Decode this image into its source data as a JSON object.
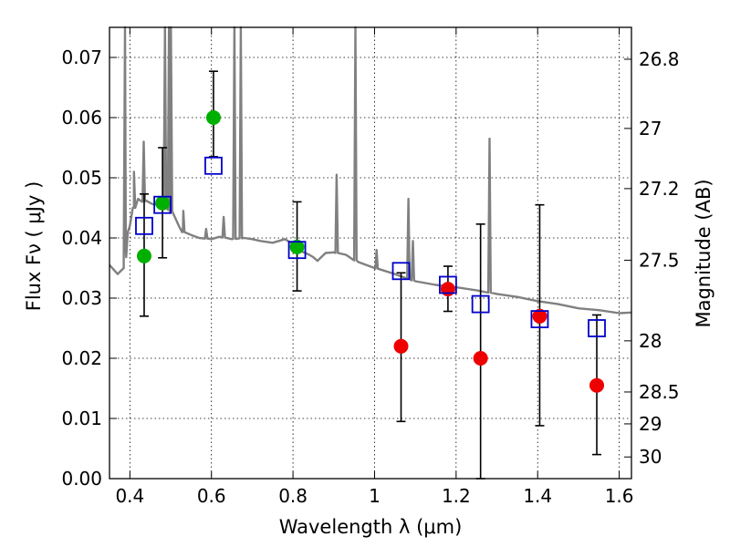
{
  "chart_data": {
    "type": "scatter",
    "title": "",
    "xlabel": "Wavelength  λ (μm)",
    "ylabel": "Flux  Fν  ( μJy )",
    "y2label": "Magnitude (AB)",
    "xlim": [
      0.35,
      1.63
    ],
    "ylim": [
      0.0,
      0.075
    ],
    "grid": true,
    "x_ticks": [
      0.4,
      0.6,
      0.8,
      1.0,
      1.2,
      1.4,
      1.6
    ],
    "x_tick_labels": [
      "0.4",
      "0.6",
      "0.8",
      "1",
      "1.2",
      "1.4",
      "1.6"
    ],
    "y_ticks": [
      0.0,
      0.01,
      0.02,
      0.03,
      0.04,
      0.05,
      0.06,
      0.07
    ],
    "y_tick_labels": [
      "0.00",
      "0.01",
      "0.02",
      "0.03",
      "0.04",
      "0.05",
      "0.06",
      "0.07"
    ],
    "y2_ticks": [
      {
        "label": "26.8",
        "flux": 0.0697
      },
      {
        "label": "27",
        "flux": 0.0582
      },
      {
        "label": "27.2",
        "flux": 0.0482
      },
      {
        "label": "27.5",
        "flux": 0.0363
      },
      {
        "label": "28",
        "flux": 0.0229
      },
      {
        "label": "28.5",
        "flux": 0.0144
      },
      {
        "label": "29",
        "flux": 0.0091
      },
      {
        "label": "30",
        "flux": 0.0036
      }
    ],
    "series": [
      {
        "name": "model spectrum",
        "kind": "line",
        "color": "#808080",
        "x": [
          0.35,
          0.37,
          0.385,
          0.39,
          0.395,
          0.4,
          0.41,
          0.42,
          0.43,
          0.44,
          0.45,
          0.46,
          0.47,
          0.48,
          0.49,
          0.5,
          0.51,
          0.52,
          0.53,
          0.55,
          0.57,
          0.6,
          0.62,
          0.65,
          0.68,
          0.7,
          0.72,
          0.75,
          0.78,
          0.8,
          0.81,
          0.82,
          0.84,
          0.85,
          0.86,
          0.88,
          0.9,
          0.93,
          0.96,
          1.0,
          1.05,
          1.07,
          1.1,
          1.15,
          1.2,
          1.25,
          1.3,
          1.35,
          1.4,
          1.45,
          1.5,
          1.55,
          1.6,
          1.63
        ],
        "y": [
          0.0355,
          0.034,
          0.035,
          0.038,
          0.041,
          0.042,
          0.045,
          0.0465,
          0.046,
          0.0462,
          0.0458,
          0.0455,
          0.046,
          0.0455,
          0.045,
          0.0445,
          0.0435,
          0.042,
          0.041,
          0.0405,
          0.04,
          0.0398,
          0.0402,
          0.0398,
          0.04,
          0.0398,
          0.0395,
          0.0392,
          0.0398,
          0.039,
          0.0385,
          0.0378,
          0.0372,
          0.0368,
          0.0362,
          0.0375,
          0.0376,
          0.0372,
          0.036,
          0.035,
          0.034,
          0.0335,
          0.0328,
          0.0322,
          0.0318,
          0.0313,
          0.0307,
          0.0302,
          0.0295,
          0.029,
          0.0283,
          0.028,
          0.0275,
          0.0276
        ]
      },
      {
        "name": "model photometry",
        "kind": "open-square",
        "color": "#0000cc",
        "x": [
          0.435,
          0.48,
          0.605,
          0.81,
          1.065,
          1.18,
          1.26,
          1.405,
          1.545
        ],
        "y": [
          0.042,
          0.0455,
          0.052,
          0.038,
          0.0345,
          0.0322,
          0.029,
          0.0265,
          0.025
        ]
      },
      {
        "name": "detections",
        "kind": "filled-circle",
        "color": "#00b000",
        "x": [
          0.435,
          0.48,
          0.605,
          0.81
        ],
        "y": [
          0.037,
          0.0458,
          0.06,
          0.0385
        ],
        "err_low": [
          0.027,
          0.0367,
          0.0535,
          0.0312
        ],
        "err_high": [
          0.0473,
          0.055,
          0.0677,
          0.046
        ]
      },
      {
        "name": "low S/N measurements",
        "kind": "filled-circle",
        "color": "#ee0000",
        "x": [
          1.065,
          1.18,
          1.26,
          1.405,
          1.545
        ],
        "y": [
          0.022,
          0.0315,
          0.02,
          0.027,
          0.0155
        ],
        "err_low": [
          0.0095,
          0.0278,
          0.0,
          0.0088,
          0.004
        ],
        "err_high": [
          0.0342,
          0.0353,
          0.0423,
          0.0455,
          0.0272
        ]
      }
    ],
    "emission_lines": [
      {
        "x": 0.388,
        "peak": 0.075
      },
      {
        "x": 0.41,
        "peak": 0.051
      },
      {
        "x": 0.434,
        "peak": 0.056
      },
      {
        "x": 0.486,
        "peak": 0.075
      },
      {
        "x": 0.496,
        "peak": 0.075
      },
      {
        "x": 0.5007,
        "peak": 0.075
      },
      {
        "x": 0.6563,
        "peak": 0.075
      },
      {
        "x": 0.672,
        "peak": 0.075
      },
      {
        "x": 0.531,
        "peak": 0.0445
      },
      {
        "x": 0.587,
        "peak": 0.0415
      },
      {
        "x": 0.63,
        "peak": 0.0435
      },
      {
        "x": 0.907,
        "peak": 0.0505
      },
      {
        "x": 0.953,
        "peak": 0.075
      },
      {
        "x": 1.083,
        "peak": 0.0465
      },
      {
        "x": 1.094,
        "peak": 0.0395
      },
      {
        "x": 1.282,
        "peak": 0.0565
      },
      {
        "x": 1.005,
        "peak": 0.038
      }
    ]
  }
}
